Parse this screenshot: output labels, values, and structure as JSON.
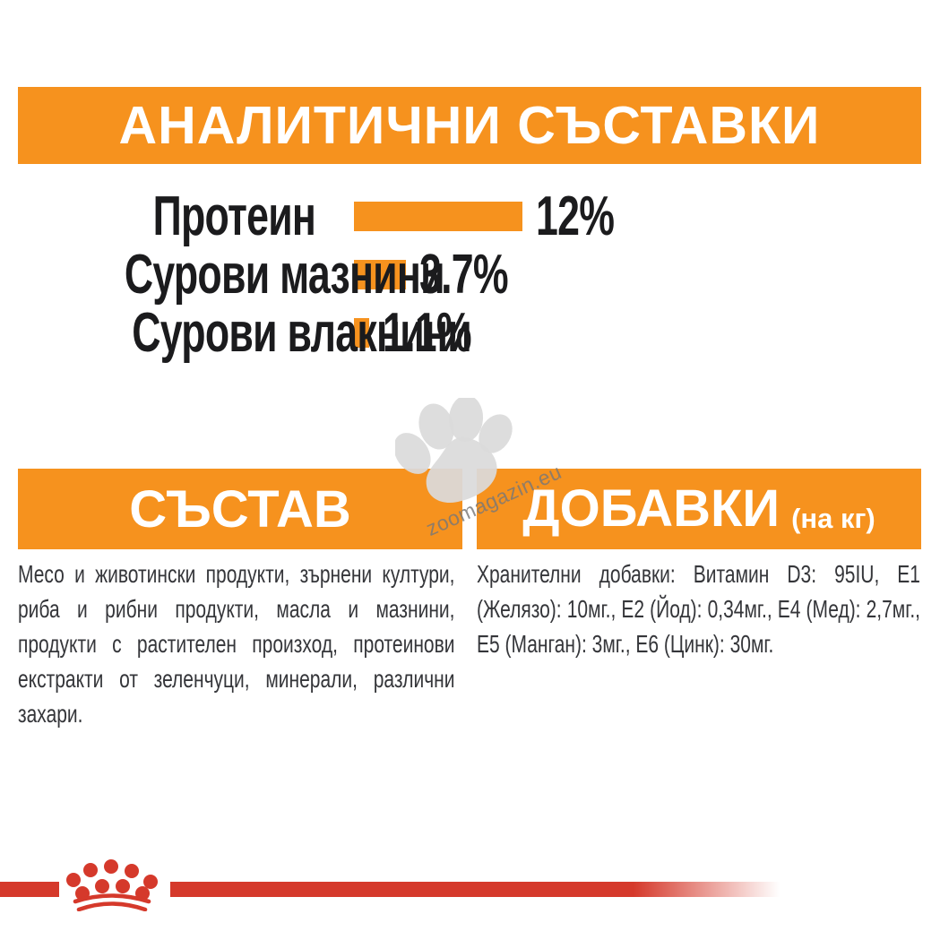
{
  "colors": {
    "orange": "#f6921e",
    "red": "#d5392b",
    "text_dark": "#35363a",
    "chart_text": "#1b1b1d",
    "watermark_gray": "#dadada"
  },
  "chart_data": {
    "type": "bar",
    "orientation": "horizontal",
    "title": "АНАЛИТИЧНИ СЪСТАВКИ",
    "categories": [
      "Протеин",
      "Сурови мазнини",
      "Сурови влакнини"
    ],
    "values": [
      12,
      3.7,
      1.1
    ],
    "value_labels": [
      "12%",
      "3.7%",
      "1.1%"
    ],
    "unit": "%",
    "xlim": [
      0,
      12
    ],
    "bar_color": "#f6921e",
    "grid": false,
    "legend": false
  },
  "watermark": {
    "text": "zoomagazin.eu",
    "icon": "paw-print"
  },
  "sections": {
    "composition": {
      "title": "СЪСТАВ",
      "body": "Месо и животински продукти, зърнени култури, риба и рибни продукти, масла и мазнини, продукти с растителен произход, протеинови екстракти от зеленчуци, минерали, различни захари."
    },
    "additives": {
      "title": "ДОБАВКИ",
      "title_suffix": "(на кг)",
      "body": "Хранителни добавки: Витамин D3: 95IU, E1 (Желязо): 10мг., E2 (Йод): 0,34мг., E4 (Мед): 2,7мг., E5 (Манган): 3мг., E6 (Цинк): 30мг."
    }
  },
  "footer": {
    "brand_logo": "royal-canin-crown"
  }
}
